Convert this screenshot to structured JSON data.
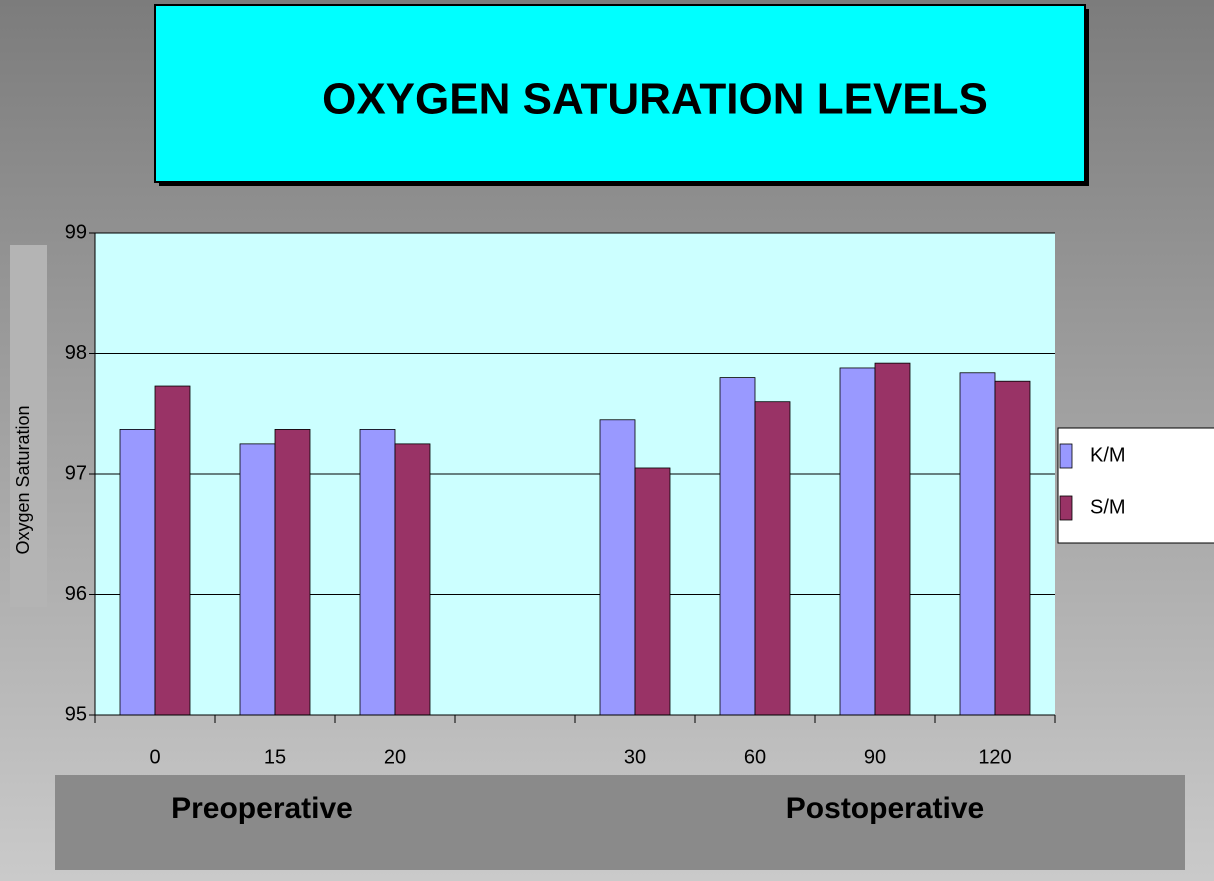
{
  "chart_data": {
    "type": "bar",
    "title": "OXYGEN SATURATION LEVELS",
    "y_label": "Oxygen Saturation",
    "categories": [
      "0",
      "15",
      "20",
      null,
      "30",
      "60",
      "90",
      "120"
    ],
    "series": [
      {
        "name": "K/M",
        "color": "#9999ff",
        "values": [
          97.37,
          97.25,
          97.37,
          null,
          97.45,
          97.8,
          97.88,
          97.84
        ]
      },
      {
        "name": "S/M",
        "color": "#993366",
        "values": [
          97.73,
          97.37,
          97.25,
          null,
          97.05,
          97.6,
          97.92,
          97.77
        ]
      }
    ],
    "ylim": [
      95,
      99
    ],
    "yticks": [
      95,
      96,
      97,
      98,
      99
    ],
    "grid": true,
    "legend": "right",
    "annotations": [
      "Preoperative",
      "Postoperative"
    ]
  }
}
